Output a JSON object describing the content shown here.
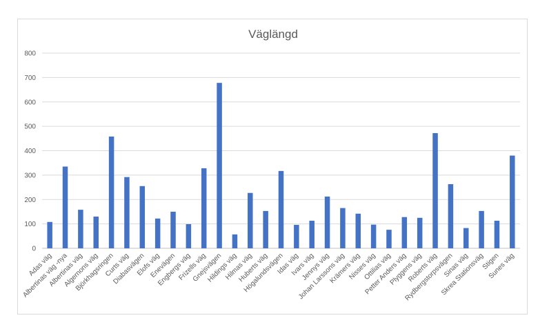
{
  "chart_data": {
    "type": "bar",
    "title": "Väglängd",
    "xlabel": "",
    "ylabel": "",
    "ylim": [
      0,
      800
    ],
    "yticks": [
      0,
      100,
      200,
      300,
      400,
      500,
      600,
      700,
      800
    ],
    "grid": true,
    "legend": "none",
    "bar_color": "#4472c4",
    "categories": [
      "Adas väg",
      "Albertinas väg -nya",
      "Albertinas väg",
      "Algernons väg",
      "Björkhagsringen",
      "Curts väg",
      "Diabasvägen",
      "Elofs väg",
      "Enevägen",
      "Engbergs väg",
      "Frizells väg",
      "Gnejsvägen",
      "Hildings väg",
      "Hilmas väg",
      "Huberts väg",
      "Högalundsvägen",
      "Idas väg",
      "Ivars väg",
      "Jennys väg",
      "Johan Larssons väg",
      "Krämers väg",
      "Nisses väg",
      "Ottilias väg",
      "Petter Anders väg",
      "Plyggens väg",
      "Roberts väg",
      "Rydbergstorpsvägen",
      "Sinas väg",
      "Skrea Stationsväg",
      "Stigen",
      "Sunes väg"
    ],
    "values": [
      108,
      335,
      158,
      130,
      458,
      292,
      255,
      122,
      150,
      99,
      328,
      678,
      57,
      227,
      153,
      317,
      96,
      113,
      212,
      165,
      142,
      97,
      76,
      128,
      125,
      472,
      263,
      83,
      153,
      113,
      380
    ]
  }
}
